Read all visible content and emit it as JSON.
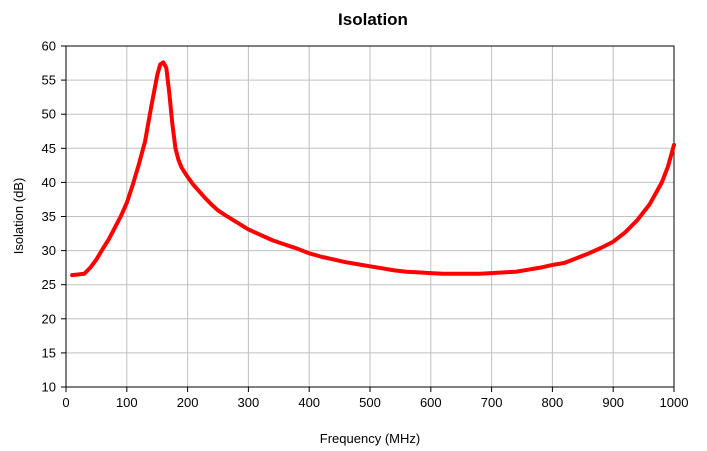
{
  "chart_data": {
    "type": "line",
    "title": "Isolation",
    "xlabel": "Frequency (MHz)",
    "ylabel": "Isolation (dB)",
    "xlim": [
      0,
      1000
    ],
    "ylim": [
      10,
      60
    ],
    "xticks": [
      0,
      100,
      200,
      300,
      400,
      500,
      600,
      700,
      800,
      900,
      1000
    ],
    "yticks": [
      10,
      15,
      20,
      25,
      30,
      35,
      40,
      45,
      50,
      55,
      60
    ],
    "grid": true,
    "legend": "none",
    "series": [
      {
        "color": "#ff0000",
        "points": [
          [
            10,
            26.4
          ],
          [
            20,
            26.5
          ],
          [
            30,
            26.6
          ],
          [
            40,
            27.5
          ],
          [
            50,
            28.7
          ],
          [
            60,
            30.2
          ],
          [
            70,
            31.6
          ],
          [
            80,
            33.3
          ],
          [
            90,
            35.0
          ],
          [
            100,
            37.0
          ],
          [
            110,
            39.7
          ],
          [
            120,
            42.7
          ],
          [
            130,
            46.0
          ],
          [
            140,
            51.0
          ],
          [
            150,
            55.7
          ],
          [
            155,
            57.3
          ],
          [
            160,
            57.6
          ],
          [
            165,
            56.8
          ],
          [
            170,
            53.0
          ],
          [
            175,
            48.5
          ],
          [
            180,
            45.0
          ],
          [
            185,
            43.3
          ],
          [
            190,
            42.2
          ],
          [
            200,
            40.8
          ],
          [
            210,
            39.6
          ],
          [
            220,
            38.6
          ],
          [
            230,
            37.6
          ],
          [
            240,
            36.7
          ],
          [
            250,
            35.9
          ],
          [
            260,
            35.3
          ],
          [
            280,
            34.2
          ],
          [
            300,
            33.1
          ],
          [
            320,
            32.3
          ],
          [
            340,
            31.5
          ],
          [
            360,
            30.9
          ],
          [
            380,
            30.3
          ],
          [
            400,
            29.6
          ],
          [
            420,
            29.1
          ],
          [
            440,
            28.7
          ],
          [
            460,
            28.3
          ],
          [
            480,
            28.0
          ],
          [
            500,
            27.7
          ],
          [
            520,
            27.4
          ],
          [
            540,
            27.1
          ],
          [
            560,
            26.9
          ],
          [
            580,
            26.8
          ],
          [
            600,
            26.7
          ],
          [
            620,
            26.6
          ],
          [
            640,
            26.6
          ],
          [
            660,
            26.6
          ],
          [
            680,
            26.6
          ],
          [
            700,
            26.7
          ],
          [
            720,
            26.8
          ],
          [
            740,
            26.9
          ],
          [
            760,
            27.2
          ],
          [
            780,
            27.5
          ],
          [
            800,
            27.9
          ],
          [
            820,
            28.2
          ],
          [
            840,
            28.9
          ],
          [
            860,
            29.6
          ],
          [
            880,
            30.4
          ],
          [
            900,
            31.3
          ],
          [
            920,
            32.7
          ],
          [
            940,
            34.5
          ],
          [
            960,
            36.8
          ],
          [
            980,
            40.0
          ],
          [
            990,
            42.3
          ],
          [
            1000,
            45.5
          ]
        ]
      }
    ]
  }
}
